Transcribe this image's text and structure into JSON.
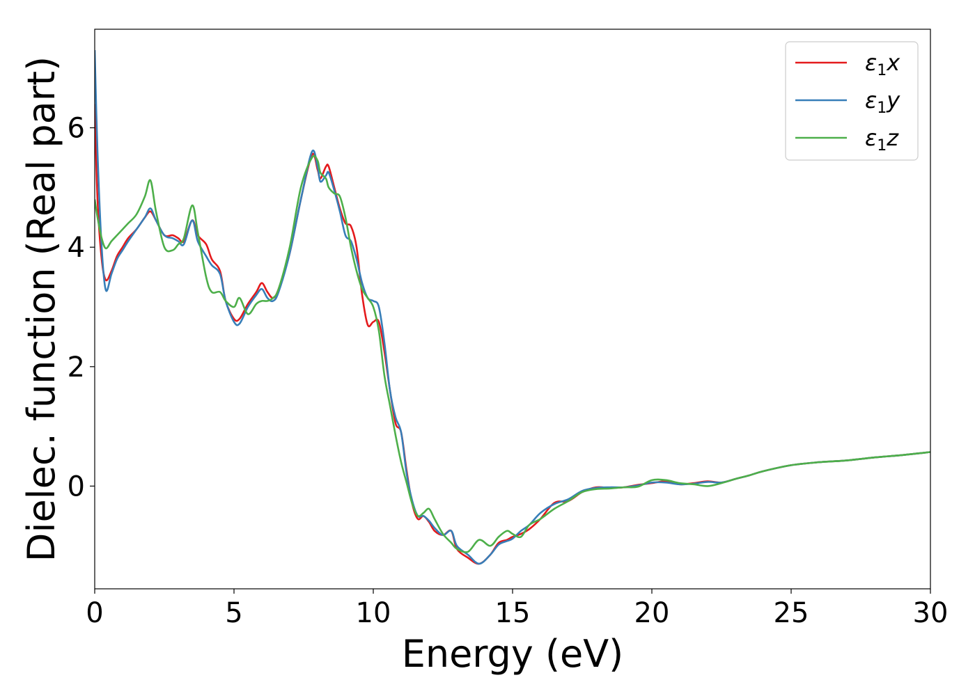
{
  "chart_data": {
    "type": "line",
    "title": "",
    "xlabel": "Energy (eV)",
    "ylabel": "Dielec. function (Real part)",
    "xlim": [
      0,
      30
    ],
    "ylim": [
      -1.72,
      7.65
    ],
    "xticks": [
      0,
      5,
      10,
      15,
      20,
      25,
      30
    ],
    "yticks": [
      0,
      2,
      4,
      6
    ],
    "grid": false,
    "legend_position": "top-right",
    "series": [
      {
        "name": "ε1x",
        "legend": {
          "symbol": "ε",
          "sub": "1",
          "var": "x"
        },
        "color": "#e41a1c",
        "x": [
          0,
          0.1,
          0.25,
          0.4,
          0.6,
          0.8,
          1.0,
          1.2,
          1.5,
          1.8,
          2.0,
          2.2,
          2.5,
          2.8,
          3.0,
          3.2,
          3.5,
          3.7,
          4.0,
          4.2,
          4.5,
          4.7,
          5.0,
          5.2,
          5.5,
          5.8,
          6.0,
          6.2,
          6.4,
          6.6,
          7.0,
          7.4,
          7.8,
          8.0,
          8.1,
          8.3,
          8.4,
          8.6,
          8.8,
          9.0,
          9.2,
          9.4,
          9.6,
          9.8,
          10.0,
          10.2,
          10.4,
          10.6,
          10.8,
          11.0,
          11.2,
          11.4,
          11.6,
          11.8,
          12.0,
          12.2,
          12.5,
          12.8,
          13.0,
          13.4,
          13.8,
          14.2,
          14.5,
          14.8,
          15.0,
          15.3,
          15.6,
          16.0,
          16.5,
          17.0,
          17.5,
          18.0,
          18.5,
          19.0,
          19.5,
          20.0,
          20.5,
          21.0,
          21.5,
          22.0,
          22.5,
          23.0,
          23.5,
          24.0,
          25.0,
          26.0,
          27.0,
          28.0,
          29.0,
          30.0
        ],
        "y": [
          6.4,
          4.8,
          3.8,
          3.45,
          3.6,
          3.85,
          4.0,
          4.15,
          4.3,
          4.5,
          4.6,
          4.45,
          4.2,
          4.2,
          4.15,
          4.1,
          4.45,
          4.2,
          4.05,
          3.8,
          3.6,
          3.1,
          2.8,
          2.8,
          3.05,
          3.25,
          3.4,
          3.25,
          3.15,
          3.3,
          3.9,
          4.8,
          5.55,
          5.3,
          5.15,
          5.35,
          5.35,
          5.0,
          4.65,
          4.4,
          4.35,
          4.0,
          3.2,
          2.7,
          2.75,
          2.75,
          2.25,
          1.6,
          1.05,
          0.9,
          0.25,
          -0.3,
          -0.55,
          -0.5,
          -0.6,
          -0.75,
          -0.82,
          -0.75,
          -1.05,
          -1.2,
          -1.3,
          -1.15,
          -0.95,
          -0.9,
          -0.85,
          -0.8,
          -0.72,
          -0.55,
          -0.28,
          -0.25,
          -0.1,
          -0.02,
          -0.03,
          -0.02,
          0.02,
          0.05,
          0.08,
          0.03,
          0.05,
          0.08,
          0.06,
          0.12,
          0.18,
          0.25,
          0.35,
          0.4,
          0.43,
          0.48,
          0.52,
          0.57
        ]
      },
      {
        "name": "ε1y",
        "legend": {
          "symbol": "ε",
          "sub": "1",
          "var": "y"
        },
        "color": "#377eb8",
        "x": [
          0,
          0.1,
          0.25,
          0.4,
          0.6,
          0.8,
          1.0,
          1.2,
          1.5,
          1.8,
          2.0,
          2.2,
          2.5,
          2.8,
          3.0,
          3.2,
          3.5,
          3.7,
          4.0,
          4.2,
          4.5,
          4.7,
          5.0,
          5.2,
          5.5,
          5.8,
          6.0,
          6.2,
          6.4,
          6.6,
          7.0,
          7.4,
          7.8,
          8.0,
          8.1,
          8.3,
          8.4,
          8.6,
          8.8,
          9.0,
          9.2,
          9.4,
          9.6,
          9.8,
          10.0,
          10.2,
          10.4,
          10.6,
          10.8,
          11.0,
          11.2,
          11.4,
          11.6,
          11.8,
          12.0,
          12.2,
          12.5,
          12.8,
          13.0,
          13.4,
          13.8,
          14.2,
          14.5,
          14.8,
          15.0,
          15.3,
          15.6,
          16.0,
          16.5,
          17.0,
          17.5,
          18.0,
          18.5,
          19.0,
          19.5,
          20.0,
          20.5,
          21.0,
          21.5,
          22.0,
          22.5,
          23.0,
          23.5,
          24.0,
          25.0,
          26.0,
          27.0,
          28.0,
          29.0,
          30.0
        ],
        "y": [
          7.3,
          5.6,
          4.0,
          3.28,
          3.55,
          3.8,
          3.95,
          4.1,
          4.3,
          4.5,
          4.65,
          4.45,
          4.2,
          4.15,
          4.1,
          4.05,
          4.45,
          4.1,
          3.85,
          3.7,
          3.55,
          3.1,
          2.75,
          2.72,
          3.0,
          3.2,
          3.3,
          3.15,
          3.1,
          3.25,
          3.9,
          4.8,
          5.6,
          5.35,
          5.1,
          5.2,
          5.25,
          4.95,
          4.6,
          4.2,
          4.1,
          3.8,
          3.4,
          3.15,
          3.1,
          3.0,
          2.4,
          1.6,
          1.15,
          0.9,
          0.2,
          -0.25,
          -0.5,
          -0.5,
          -0.58,
          -0.7,
          -0.82,
          -0.75,
          -1.0,
          -1.15,
          -1.3,
          -1.15,
          -0.98,
          -0.92,
          -0.88,
          -0.75,
          -0.65,
          -0.45,
          -0.3,
          -0.22,
          -0.08,
          -0.03,
          -0.02,
          -0.02,
          0.01,
          0.06,
          0.06,
          0.03,
          0.04,
          0.07,
          0.06,
          0.12,
          0.18,
          0.25,
          0.35,
          0.4,
          0.43,
          0.48,
          0.52,
          0.57
        ]
      },
      {
        "name": "ε1z",
        "legend": {
          "symbol": "ε",
          "sub": "1",
          "var": "z"
        },
        "color": "#4daf4a",
        "x": [
          0,
          0.1,
          0.25,
          0.4,
          0.6,
          0.8,
          1.0,
          1.2,
          1.5,
          1.8,
          2.0,
          2.2,
          2.5,
          2.8,
          3.0,
          3.2,
          3.5,
          3.7,
          4.0,
          4.2,
          4.5,
          4.7,
          5.0,
          5.2,
          5.5,
          5.8,
          6.0,
          6.2,
          6.4,
          6.6,
          7.0,
          7.4,
          7.8,
          8.0,
          8.1,
          8.3,
          8.4,
          8.6,
          8.8,
          9.0,
          9.2,
          9.4,
          9.6,
          9.8,
          10.0,
          10.2,
          10.4,
          10.6,
          10.8,
          11.0,
          11.2,
          11.4,
          11.6,
          11.8,
          12.0,
          12.2,
          12.5,
          12.8,
          13.0,
          13.4,
          13.8,
          14.2,
          14.5,
          14.8,
          15.0,
          15.3,
          15.6,
          16.0,
          16.5,
          17.0,
          17.5,
          18.0,
          18.5,
          19.0,
          19.5,
          20.0,
          20.5,
          21.0,
          21.5,
          22.0,
          22.5,
          23.0,
          23.5,
          24.0,
          25.0,
          26.0,
          27.0,
          28.0,
          29.0,
          30.0
        ],
        "y": [
          4.8,
          4.5,
          4.15,
          3.98,
          4.1,
          4.2,
          4.3,
          4.4,
          4.55,
          4.85,
          5.12,
          4.6,
          4.0,
          3.95,
          4.05,
          4.15,
          4.7,
          4.25,
          3.5,
          3.25,
          3.25,
          3.1,
          3.0,
          3.15,
          2.88,
          3.05,
          3.1,
          3.1,
          3.15,
          3.3,
          4.0,
          5.0,
          5.5,
          5.45,
          5.25,
          5.15,
          5.0,
          4.9,
          4.85,
          4.5,
          4.0,
          3.6,
          3.3,
          3.15,
          3.0,
          2.6,
          1.85,
          1.35,
          0.85,
          0.4,
          0.05,
          -0.3,
          -0.5,
          -0.45,
          -0.38,
          -0.55,
          -0.8,
          -0.95,
          -1.05,
          -1.1,
          -0.9,
          -1.0,
          -0.85,
          -0.75,
          -0.8,
          -0.85,
          -0.65,
          -0.55,
          -0.38,
          -0.25,
          -0.1,
          -0.05,
          -0.04,
          -0.02,
          -0.01,
          0.1,
          0.1,
          0.05,
          0.03,
          0.0,
          0.05,
          0.12,
          0.18,
          0.25,
          0.35,
          0.4,
          0.43,
          0.48,
          0.52,
          0.57
        ]
      }
    ]
  }
}
